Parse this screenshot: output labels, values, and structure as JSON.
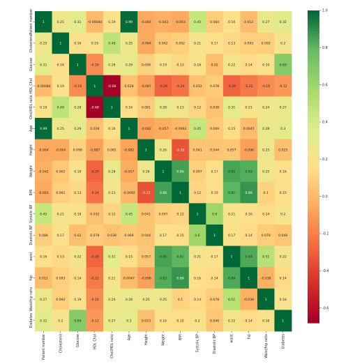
{
  "chart_data": {
    "type": "heatmap",
    "title": "",
    "xlabel": "",
    "ylabel": "",
    "rows": [
      "Patient number",
      "Cholesterol",
      "Glucose",
      "HDL Chol",
      "Chol/HDL ratio",
      "Age",
      "Height",
      "Weight",
      "BMI",
      "Systolic BP",
      "Diastolic BP",
      "waist",
      "hip",
      "Waist/hip ratio",
      "Diabetes"
    ],
    "columns": [
      "Patient number",
      "Cholesterol",
      "Glucose",
      "HDL Chol",
      "Chol/HDL ratio",
      "Age",
      "Height",
      "Weight",
      "BMI",
      "Systolic BP",
      "Diastolic BP",
      "waist",
      "hip",
      "Waist/hip ratio",
      "Diabetes"
    ],
    "values": [
      [
        1,
        0.25,
        0.31,
        -0.00084,
        0.19,
        0.99,
        -0.064,
        -0.042,
        -0.063,
        0.45,
        0.084,
        0.16,
        0.012,
        0.27,
        0.32
      ],
      [
        0.25,
        1,
        0.16,
        0.19,
        0.48,
        0.25,
        -0.064,
        0.062,
        0.092,
        0.21,
        0.17,
        0.13,
        0.093,
        0.092,
        0.2
      ],
      [
        0.31,
        0.16,
        1,
        -0.16,
        0.28,
        0.29,
        0.098,
        0.19,
        0.13,
        0.18,
        0.02,
        0.22,
        0.14,
        0.19,
        0.69
      ],
      [
        -0.00084,
        0.19,
        -0.16,
        1,
        -0.68,
        0.028,
        -0.087,
        -0.29,
        -0.24,
        0.032,
        0.078,
        -0.29,
        -0.22,
        -0.16,
        -0.12
      ],
      [
        0.19,
        0.48,
        0.28,
        -0.68,
        1,
        0.16,
        0.081,
        0.28,
        0.23,
        0.12,
        0.038,
        0.31,
        0.21,
        0.24,
        0.27
      ],
      [
        0.99,
        0.25,
        0.29,
        0.028,
        0.16,
        1,
        -0.082,
        -0.057,
        -0.0092,
        0.45,
        0.069,
        0.15,
        0.0047,
        0.28,
        0.3
      ],
      [
        -0.064,
        -0.064,
        0.098,
        -0.087,
        0.081,
        -0.082,
        1,
        0.26,
        -0.35,
        0.041,
        0.044,
        0.057,
        -0.096,
        0.25,
        0.023
      ],
      [
        -0.042,
        0.062,
        0.19,
        -0.29,
        0.28,
        -0.057,
        0.26,
        1,
        0.86,
        0.097,
        0.17,
        0.85,
        0.83,
        0.25,
        0.16
      ],
      [
        -0.063,
        0.092,
        0.13,
        -0.24,
        0.23,
        -0.0092,
        -0.35,
        0.86,
        1,
        0.12,
        0.15,
        0.81,
        0.89,
        0.1,
        0.15
      ],
      [
        0.45,
        0.21,
        0.18,
        0.032,
        0.12,
        0.45,
        0.041,
        0.097,
        0.12,
        1,
        0.6,
        0.21,
        0.16,
        0.14,
        0.2
      ],
      [
        0.084,
        0.17,
        0.02,
        0.078,
        0.038,
        0.069,
        0.044,
        0.17,
        0.15,
        0.6,
        1,
        0.17,
        0.14,
        0.078,
        0.049
      ],
      [
        0.16,
        0.13,
        0.22,
        -0.29,
        0.31,
        0.15,
        0.057,
        0.85,
        0.81,
        0.21,
        0.17,
        1,
        0.84,
        0.51,
        0.22
      ],
      [
        0.012,
        0.093,
        0.14,
        -0.22,
        0.21,
        0.0047,
        -0.096,
        0.83,
        0.89,
        0.16,
        0.14,
        0.84,
        1,
        -0.038,
        0.14
      ],
      [
        0.27,
        0.092,
        0.19,
        -0.16,
        0.24,
        0.28,
        0.25,
        0.25,
        0.1,
        0.14,
        0.078,
        0.51,
        -0.038,
        1,
        0.18
      ],
      [
        0.32,
        0.2,
        0.69,
        -0.12,
        0.27,
        0.3,
        0.023,
        0.16,
        0.15,
        0.2,
        0.049,
        0.22,
        0.14,
        0.18,
        1
      ]
    ],
    "colorscale": "RdYlGn",
    "vmin": -0.68,
    "vmax": 1.0,
    "colorbar_ticks": [
      1.0,
      0.8,
      0.6,
      0.4,
      0.2,
      0.0,
      -0.2,
      -0.4,
      -0.6
    ],
    "colorbar_labels": [
      "1.0",
      "0.8",
      "0.6",
      "0.4",
      "0.2",
      "0.0",
      "-0.2",
      "-0.4",
      "-0.6"
    ],
    "legend_placement": "right"
  }
}
